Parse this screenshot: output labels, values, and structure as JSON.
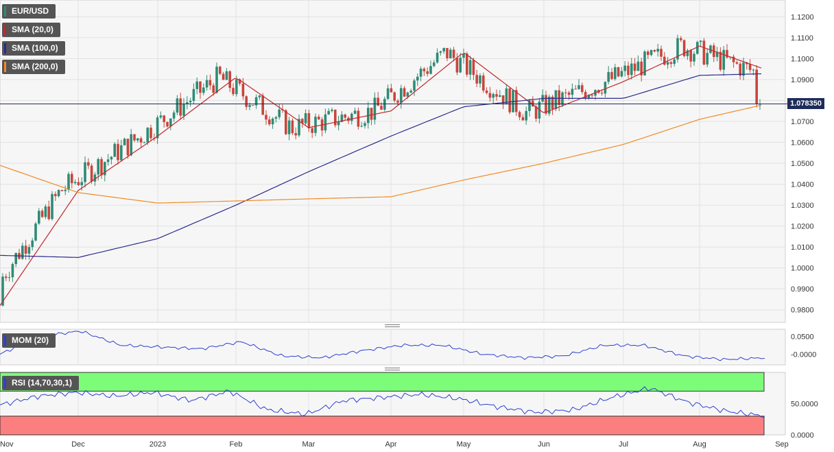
{
  "legend": {
    "symbol": "EUR/USD",
    "sma20": "SMA (20,0)",
    "sma100": "SMA (100,0)",
    "sma200": "SMA (200,0)",
    "mom": "MOM (20)",
    "rsi": "RSI (14,70,30,1)"
  },
  "colors": {
    "up": "#2e8b74",
    "down": "#c9453b",
    "sma20": "#c0282d",
    "sma100": "#2b2a8c",
    "sma200": "#f08a24",
    "osc": "#2d3fd0",
    "rsi_overbought": "#7dfc7a",
    "rsi_oversold": "#fb7f7e"
  },
  "price_label": "1.078350",
  "chart_data": {
    "type": "line",
    "title": "EUR/USD",
    "x_ticks": [
      "Nov",
      "Dec",
      "2023",
      "Feb",
      "Mar",
      "Apr",
      "May",
      "Jun",
      "Jul",
      "Aug",
      "Sep"
    ],
    "price_axis": {
      "ticks": [
        "1.1200",
        "1.1100",
        "1.1000",
        "1.0900",
        "1.0800",
        "1.0700",
        "1.0600",
        "1.0500",
        "1.0400",
        "1.0300",
        "1.0200",
        "1.0100",
        "1.0000",
        "0.9900",
        "0.9800"
      ],
      "ylim": [
        0.974,
        1.128
      ]
    },
    "current_price": 1.07835,
    "series": [
      {
        "name": "SMA (20,0)",
        "dates": [
          "Nov",
          "Dec",
          "2023",
          "Feb",
          "Mar",
          "Apr",
          "May",
          "Jun",
          "Jul",
          "Aug",
          "Sep"
        ],
        "values": [
          0.982,
          1.037,
          1.063,
          1.091,
          1.067,
          1.075,
          1.103,
          1.074,
          1.089,
          1.106,
          1.092
        ]
      },
      {
        "name": "SMA (100,0)",
        "dates": [
          "Nov",
          "Dec",
          "2023",
          "Feb",
          "Mar",
          "Apr",
          "May",
          "Jun",
          "Jul",
          "Aug",
          "Sep"
        ],
        "values": [
          1.006,
          1.005,
          1.014,
          1.03,
          1.046,
          1.063,
          1.077,
          1.081,
          1.081,
          1.092,
          1.093
        ]
      },
      {
        "name": "SMA (200,0)",
        "dates": [
          "Nov",
          "Dec",
          "2023",
          "Feb",
          "Mar",
          "Apr",
          "May",
          "Jun",
          "Jul",
          "Aug",
          "Sep"
        ],
        "values": [
          1.049,
          1.036,
          1.031,
          1.032,
          1.033,
          1.034,
          1.042,
          1.05,
          1.059,
          1.071,
          1.08
        ]
      }
    ],
    "mom": {
      "name": "MOM (20)",
      "ticks": [
        "0.0500",
        "-0.0000"
      ],
      "ylim": [
        -0.03,
        0.07
      ],
      "values": [
        0.0,
        0.05,
        0.065,
        0.025,
        0.02,
        0.015,
        0.035,
        -0.005,
        -0.01,
        0.01,
        0.025,
        0.025,
        0.0,
        -0.01,
        -0.005,
        0.025,
        0.025,
        -0.005,
        -0.015,
        -0.01
      ]
    },
    "rsi": {
      "name": "RSI (14,70,30,1)",
      "ticks": [
        "50.0000",
        "0.0000"
      ],
      "ylim": [
        0,
        100
      ],
      "overbought": 70,
      "oversold": 30,
      "values": [
        48,
        62,
        68,
        62,
        68,
        55,
        70,
        40,
        33,
        55,
        60,
        65,
        58,
        45,
        36,
        40,
        60,
        75,
        52,
        38,
        30
      ]
    }
  }
}
